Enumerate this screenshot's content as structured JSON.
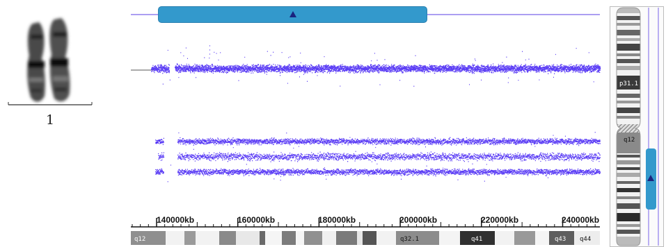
{
  "chromosome": {
    "label": "1"
  },
  "axis": {
    "ticks": [
      {
        "kb": 140000,
        "label": "140000kb"
      },
      {
        "kb": 160000,
        "label": "160000kb"
      },
      {
        "kb": 180000,
        "label": "180000kb"
      },
      {
        "kb": 200000,
        "label": "200000kb"
      },
      {
        "kb": 220000,
        "label": "220000kb"
      },
      {
        "kb": 240000,
        "label": "240000kb"
      }
    ]
  },
  "bottom_bands": [
    {
      "label": "q12"
    },
    {
      "label": "q32.1"
    },
    {
      "label": "q41"
    },
    {
      "label": "q43"
    },
    {
      "label": "q44"
    }
  ],
  "ideogram_bands": [
    {
      "label": "p31.1"
    },
    {
      "label": "q12"
    }
  ],
  "colors": {
    "data_points": "#5b3df5",
    "region_bar": "#3399cc",
    "arrow": "#1a237e"
  },
  "icons": {
    "region_marker": "triangle-up-icon",
    "side_marker": "triangle-up-icon"
  }
}
